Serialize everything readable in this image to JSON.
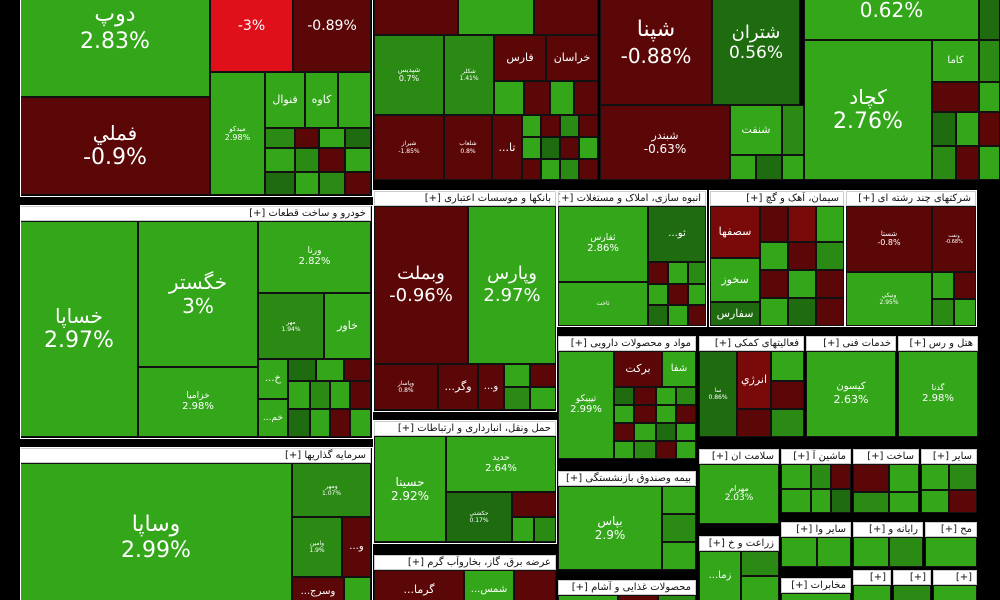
{
  "palette": {
    "up_strong": "#33a61a",
    "up_mid": "#2a8a14",
    "up_dark": "#1e6b10",
    "down_dark": "#5c0707",
    "down_mid": "#7a0a0a",
    "down_red": "#e0101a",
    "header_bg": "#ffffff"
  },
  "headers": {
    "auto": "خودرو و ساخت قطعات [+]",
    "invest": "سرمایه گذاریها [+]",
    "banks": "بانکها و موسسات اعتباری [+]",
    "transport": "حمل ونقل، انبارداری و ارتباطات [+]",
    "utilities": "عرضه برق، گاز، بخاروآب گرم [+]",
    "realestate": "انبوه سازی، املاک و مستغلات [+]",
    "pharma": "مواد و محصولات دارویی [+]",
    "insurance": "بیمه وصندوق بازنشستگی [+]",
    "food": "محصولات غذایی و آشام [+]",
    "cement": "سیمان، آهک و گچ [+]",
    "multi": "شرکتهای چند رشته ای [+]",
    "aux": "فعالیتهای کمکی [+]",
    "tech": "خدمات فنی [+]",
    "hotel": "هتل و رس [+]",
    "health": "سلامت ان [+]",
    "machine": "ماشین آ [+]",
    "build": "ساخت [+]",
    "other": "سایر [+]",
    "agri": "زراعت و خ [+]",
    "othr2": "سایر وا [+]",
    "comp": "رایانه و [+]",
    "misc": "مح [+]",
    "telecom": "مخابرات [+]",
    "x1": "[+]",
    "x2": "[+]",
    "x3": "[+]"
  },
  "tiles": [
    {
      "id": "dop",
      "sym": "دوپ",
      "pct": "2.83%",
      "c": "up_strong"
    },
    {
      "id": "r1",
      "sym": "",
      "pct": "-3%",
      "c": "down_red"
    },
    {
      "id": "r2",
      "sym": "",
      "pct": "-0.89%",
      "c": "down_dark"
    },
    {
      "id": "fameli",
      "sym": "فملي",
      "pct": "-0.9%",
      "c": "down_dark"
    },
    {
      "id": "midko",
      "sym": "ميدکو",
      "pct": "2.98%",
      "c": "up_strong"
    },
    {
      "id": "fonval",
      "sym": "فنوال",
      "pct": "",
      "c": "up_strong"
    },
    {
      "id": "kave",
      "sym": "کاوه",
      "pct": "",
      "c": "up_strong"
    },
    {
      "id": "shapna",
      "sym": "شپنا",
      "pct": "-0.88%",
      "c": "down_dark"
    },
    {
      "id": "shetran",
      "sym": "شتران",
      "pct": "0.56%",
      "c": "up_dark"
    },
    {
      "id": "topright",
      "sym": "",
      "pct": "0.62%",
      "c": "up_strong"
    },
    {
      "id": "kama",
      "sym": "کاما",
      "pct": "",
      "c": "up_strong"
    },
    {
      "id": "kechad",
      "sym": "کچاد",
      "pct": "2.76%",
      "c": "up_strong"
    },
    {
      "id": "shebandar",
      "sym": "شبندر",
      "pct": "-0.63%",
      "c": "down_dark"
    },
    {
      "id": "shenaft",
      "sym": "شنفت",
      "pct": "",
      "c": "up_strong"
    },
    {
      "id": "fars",
      "sym": "فارس",
      "pct": "",
      "c": "down_dark"
    },
    {
      "id": "khorasan",
      "sym": "خراسان",
      "pct": "",
      "c": "down_dark"
    },
    {
      "id": "shedis",
      "sym": "شپديس",
      "pct": "0.7%",
      "c": "up_mid"
    },
    {
      "id": "shekeler",
      "sym": "شکلر",
      "pct": "1.41%",
      "c": "up_mid"
    },
    {
      "id": "shiraz",
      "sym": "شيراز",
      "pct": "-1.85%",
      "c": "down_dark"
    },
    {
      "id": "shelanko",
      "sym": "شلعاب",
      "pct": "0.8%",
      "c": "down_dark"
    },
    {
      "id": "ta",
      "sym": "...تا",
      "pct": "",
      "c": "down_dark"
    },
    {
      "id": "khesapa",
      "sym": "خساپا",
      "pct": "2.97%",
      "c": "up_strong"
    },
    {
      "id": "khegostar",
      "sym": "خگستر",
      "pct": "3%",
      "c": "up_strong"
    },
    {
      "id": "varena",
      "sym": "ورنا",
      "pct": "2.82%",
      "c": "up_strong"
    },
    {
      "id": "mehr",
      "sym": "مهر",
      "pct": "1.94%",
      "c": "up_mid"
    },
    {
      "id": "khavar",
      "sym": "خاور",
      "pct": "",
      "c": "up_strong"
    },
    {
      "id": "khazamia",
      "sym": "خزاميا",
      "pct": "2.98%",
      "c": "up_strong"
    },
    {
      "id": "kh",
      "sym": "...خ",
      "pct": "",
      "c": "up_strong"
    },
    {
      "id": "khem",
      "sym": "...خم",
      "pct": "",
      "c": "up_strong"
    },
    {
      "id": "vabemellat",
      "sym": "وبملت",
      "pct": "-0.96%",
      "c": "down_dark"
    },
    {
      "id": "vaparis",
      "sym": "وپارس",
      "pct": "2.97%",
      "c": "up_strong"
    },
    {
      "id": "vaghar",
      "sym": "...وگر",
      "pct": "",
      "c": "down_dark"
    },
    {
      "id": "vapasar",
      "sym": "وپاسار",
      "pct": "0.8%",
      "c": "down_dark"
    },
    {
      "id": "vo",
      "sym": "...و",
      "pct": "",
      "c": "down_dark"
    },
    {
      "id": "hasina",
      "sym": "حسينا",
      "pct": "2.92%",
      "c": "up_strong"
    },
    {
      "id": "hadid",
      "sym": "حديد",
      "pct": "2.64%",
      "c": "up_strong"
    },
    {
      "id": "hakshti",
      "sym": "حکشتي",
      "pct": "0.17%",
      "c": "up_dark"
    },
    {
      "id": "vasapa",
      "sym": "وساپا",
      "pct": "2.99%",
      "c": "up_strong"
    },
    {
      "id": "vamehr",
      "sym": "ومهر",
      "pct": "1.07%",
      "c": "up_mid"
    },
    {
      "id": "vaamin",
      "sym": "وامين",
      "pct": "1.9%",
      "c": "up_mid"
    },
    {
      "id": "vo2",
      "sym": "...و",
      "pct": "",
      "c": "down_dark"
    },
    {
      "id": "vosraj",
      "sym": "...وسرج",
      "pct": "",
      "c": "down_dark"
    },
    {
      "id": "thefars",
      "sym": "ثفارس",
      "pct": "2.86%",
      "c": "up_strong"
    },
    {
      "id": "thajad",
      "sym": "ثاخت",
      "pct": "",
      "c": "up_strong"
    },
    {
      "id": "thao",
      "sym": "...ثو",
      "pct": "",
      "c": "up_dark"
    },
    {
      "id": "sesafha",
      "sym": "سصفها",
      "pct": "",
      "c": "down_mid"
    },
    {
      "id": "sakhoz",
      "sym": "سخوز",
      "pct": "",
      "c": "up_strong"
    },
    {
      "id": "safars",
      "sym": "سفارس",
      "pct": "",
      "c": "up_dark"
    },
    {
      "id": "shasta",
      "sym": "شستا",
      "pct": "-0.8%",
      "c": "down_dark"
    },
    {
      "id": "vanik",
      "sym": "ونيکي",
      "pct": "2.95%",
      "c": "up_strong"
    },
    {
      "id": "vanaft",
      "sym": "ونفت",
      "pct": "-0.68%",
      "c": "down_dark"
    },
    {
      "id": "tipiko",
      "sym": "تيپيکو",
      "pct": "2.99%",
      "c": "up_strong"
    },
    {
      "id": "barakat",
      "sym": "برکت",
      "pct": "",
      "c": "down_dark"
    },
    {
      "id": "shefa",
      "sym": "شفا",
      "pct": "",
      "c": "up_strong"
    },
    {
      "id": "enerji",
      "sym": "انرژي",
      "pct": "",
      "c": "down_mid"
    },
    {
      "id": "sa",
      "sym": "سا",
      "pct": "0.86%",
      "c": "up_dark"
    },
    {
      "id": "kasvan",
      "sym": "کيسون",
      "pct": "2.63%",
      "c": "up_strong"
    },
    {
      "id": "gadna",
      "sym": "گدنا",
      "pct": "2.98%",
      "c": "up_strong"
    },
    {
      "id": "mehrram",
      "sym": "مهرام",
      "pct": "2.03%",
      "c": "up_strong"
    },
    {
      "id": "bayas",
      "sym": "بپاس",
      "pct": "2.9%",
      "c": "up_strong"
    },
    {
      "id": "zama",
      "sym": "...زما",
      "pct": "",
      "c": "up_strong"
    },
    {
      "id": "garma",
      "sym": "...گرما",
      "pct": "",
      "c": "down_dark"
    },
    {
      "id": "shams",
      "sym": "...شمس",
      "pct": "",
      "c": "up_strong"
    }
  ]
}
